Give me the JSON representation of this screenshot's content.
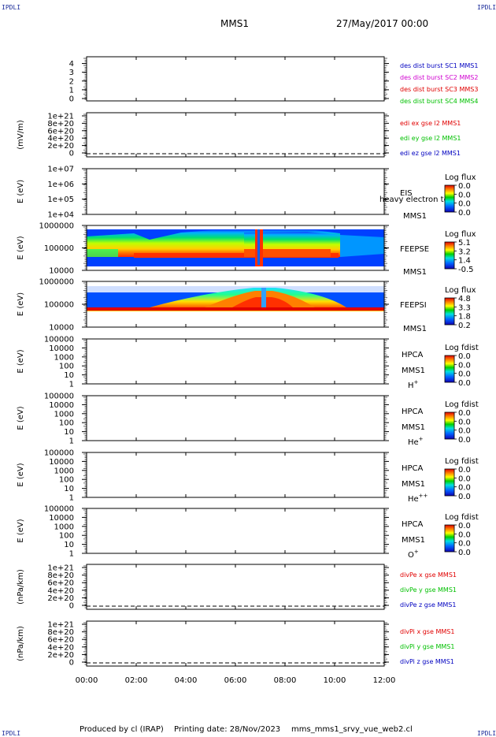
{
  "header": {
    "mission": "MMS1",
    "datetime": "27/May/2017 00:00",
    "corner_label": "IPDLI"
  },
  "footer": {
    "produced_by": "Produced by cl (IRAP)",
    "printing_date": "Printing date: 28/Nov/2023",
    "script_name": "mms_mms1_srvy_vue_web2.cl"
  },
  "time_axis": [
    "00:00",
    "02:00",
    "04:00",
    "06:00",
    "08:00",
    "10:00",
    "12:00"
  ],
  "colors": {
    "series_red": "#e00000",
    "series_green": "#00c000",
    "series_blue": "#0000c0",
    "series_magenta": "#d000d0",
    "corner_blue": "#1a2b9a"
  },
  "chart_data": [
    {
      "id": "des",
      "type": "line",
      "ylabel": "",
      "ticks": [
        "4",
        "3",
        "2",
        "1",
        "0"
      ],
      "legend": [
        {
          "text": "des dist burst SC1 MMS1",
          "color": "#0000c0"
        },
        {
          "text": "des dist burst SC2 MMS2",
          "color": "#d000d0"
        },
        {
          "text": "des dist burst SC3 MMS3",
          "color": "#e00000"
        },
        {
          "text": "des dist burst SC4 MMS4",
          "color": "#00c000"
        }
      ],
      "series": [],
      "ylim": [
        0,
        4.5
      ]
    },
    {
      "id": "edi",
      "type": "line",
      "ylabel": "(mV/m)",
      "ticks": [
        "1e+21",
        "8e+20",
        "6e+20",
        "4e+20",
        "2e+20",
        "0"
      ],
      "legend": [
        {
          "text": "edi ex gse l2 MMS1",
          "color": "#e00000"
        },
        {
          "text": "edi ey gse l2 MMS1",
          "color": "#00c000"
        },
        {
          "text": "edi ez gse l2 MMS1",
          "color": "#0000c0"
        }
      ],
      "zero_line": true,
      "series": []
    },
    {
      "id": "eis",
      "type": "heatmap",
      "ylabel": "E (eV)",
      "ticks": [
        "1e+07",
        "1e+06",
        "1e+05",
        "1e+04"
      ],
      "labels": [
        "EIS",
        "MMS1"
      ],
      "overlay_text": "heavy electron to",
      "colorbar": {
        "title": "Log flux",
        "ticks": [
          "0.0",
          "0.0",
          "0.0",
          "0.0"
        ]
      },
      "empty": true
    },
    {
      "id": "feepse",
      "type": "heatmap",
      "ylabel": "E (eV)",
      "ticks": [
        "1000000",
        "100000",
        "10000"
      ],
      "labels": [
        "FEEPSE",
        "MMS1"
      ],
      "colorbar": {
        "title": "Log flux",
        "ticks": [
          "5.1",
          "3.2",
          "1.4",
          "-0.5"
        ]
      },
      "empty": false
    },
    {
      "id": "feepsi",
      "type": "heatmap",
      "ylabel": "E (eV)",
      "ticks": [
        "1000000",
        "100000",
        "10000"
      ],
      "labels": [
        "FEEPSI",
        "MMS1"
      ],
      "colorbar": {
        "title": "Log flux",
        "ticks": [
          "4.8",
          "3.3",
          "1.8",
          "0.2"
        ]
      },
      "empty": false
    },
    {
      "id": "hpca_h",
      "type": "heatmap",
      "ylabel": "E (eV)",
      "ticks": [
        "100000",
        "10000",
        "1000",
        "100",
        "10",
        "1"
      ],
      "labels": [
        "HPCA",
        "MMS1"
      ],
      "species": "H",
      "species_charge": "+",
      "colorbar": {
        "title": "Log fdist",
        "ticks": [
          "0.0",
          "0.0",
          "0.0",
          "0.0"
        ]
      },
      "empty": true
    },
    {
      "id": "hpca_he",
      "type": "heatmap",
      "ylabel": "E (eV)",
      "ticks": [
        "100000",
        "10000",
        "1000",
        "100",
        "10",
        "1"
      ],
      "labels": [
        "HPCA",
        "MMS1"
      ],
      "species": "He",
      "species_charge": "+",
      "colorbar": {
        "title": "Log fdist",
        "ticks": [
          "0.0",
          "0.0",
          "0.0",
          "0.0"
        ]
      },
      "empty": true
    },
    {
      "id": "hpca_he2",
      "type": "heatmap",
      "ylabel": "E (eV)",
      "ticks": [
        "100000",
        "10000",
        "1000",
        "100",
        "10",
        "1"
      ],
      "labels": [
        "HPCA",
        "MMS1"
      ],
      "species": "He",
      "species_charge": "++",
      "colorbar": {
        "title": "Log fdist",
        "ticks": [
          "0.0",
          "0.0",
          "0.0",
          "0.0"
        ]
      },
      "empty": true
    },
    {
      "id": "hpca_o",
      "type": "heatmap",
      "ylabel": "E (eV)",
      "ticks": [
        "100000",
        "10000",
        "1000",
        "100",
        "10",
        "1"
      ],
      "labels": [
        "HPCA",
        "MMS1"
      ],
      "species": "O",
      "species_charge": "+",
      "colorbar": {
        "title": "Log fdist",
        "ticks": [
          "0.0",
          "0.0",
          "0.0",
          "0.0"
        ]
      },
      "empty": true
    },
    {
      "id": "divpe",
      "type": "line",
      "ylabel": "(nPa/km)",
      "ticks": [
        "1e+21",
        "8e+20",
        "6e+20",
        "4e+20",
        "2e+20",
        "0"
      ],
      "legend": [
        {
          "text": "divPe x gse MMS1",
          "color": "#e00000"
        },
        {
          "text": "divPe y gse MMS1",
          "color": "#00c000"
        },
        {
          "text": "divPe z gse MMS1",
          "color": "#0000c0"
        }
      ],
      "zero_line": true,
      "series": []
    },
    {
      "id": "divpi",
      "type": "line",
      "ylabel": "(nPa/km)",
      "ticks": [
        "1e+21",
        "8e+20",
        "6e+20",
        "4e+20",
        "2e+20",
        "0"
      ],
      "legend": [
        {
          "text": "divPi x gse MMS1",
          "color": "#e00000"
        },
        {
          "text": "divPi y gse MMS1",
          "color": "#00c000"
        },
        {
          "text": "divPi z gse MMS1",
          "color": "#0000c0"
        }
      ],
      "zero_line": true,
      "series": []
    }
  ]
}
